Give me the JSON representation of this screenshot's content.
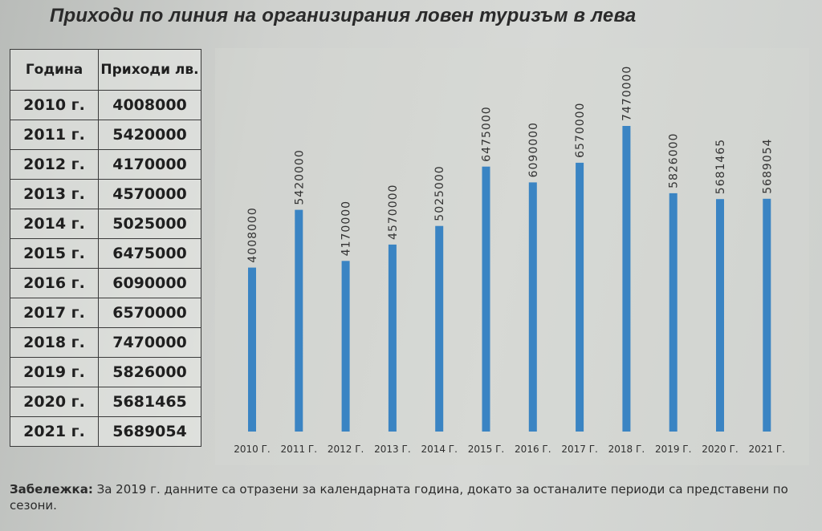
{
  "title": "Приходи по линия на организирания ловен туризъм в лева",
  "table": {
    "headers": [
      "Година",
      "Приходи лв."
    ],
    "rows": [
      [
        "2010 г.",
        "4008000"
      ],
      [
        "2011 г.",
        "5420000"
      ],
      [
        "2012 г.",
        "4170000"
      ],
      [
        "2013 г.",
        "4570000"
      ],
      [
        "2014 г.",
        "5025000"
      ],
      [
        "2015 г.",
        "6475000"
      ],
      [
        "2016 г.",
        "6090000"
      ],
      [
        "2017 г.",
        "6570000"
      ],
      [
        "2018 г.",
        "7470000"
      ],
      [
        "2019 г.",
        "5826000"
      ],
      [
        "2020 г.",
        "5681465"
      ],
      [
        "2021 г.",
        "5689054"
      ]
    ]
  },
  "chart_data": {
    "type": "bar",
    "title": "",
    "xlabel": "",
    "ylabel": "",
    "categories": [
      "2010 г.",
      "2011 г.",
      "2012 г.",
      "2013 г.",
      "2014 г.",
      "2015 г.",
      "2016 г.",
      "2017 г.",
      "2018 г.",
      "2019 г.",
      "2020 г.",
      "2021 г."
    ],
    "values": [
      4008000,
      5420000,
      4170000,
      4570000,
      5025000,
      6475000,
      6090000,
      6570000,
      7470000,
      5826000,
      5681465,
      5689054
    ],
    "data_labels": [
      "4008000",
      "5420000",
      "4170000",
      "4570000",
      "5025000",
      "6475000",
      "6090000",
      "6570000",
      "7470000",
      "5826000",
      "5681465",
      "5689054"
    ],
    "ylim": [
      0,
      7470000
    ],
    "grid": false,
    "legend": "none",
    "bar_color": "#3a84c3"
  },
  "note": {
    "label": "Забележка:",
    "text": " За 2019 г. данните са отразени за календарната година, докато за останалите периоди са представени по сезони."
  }
}
